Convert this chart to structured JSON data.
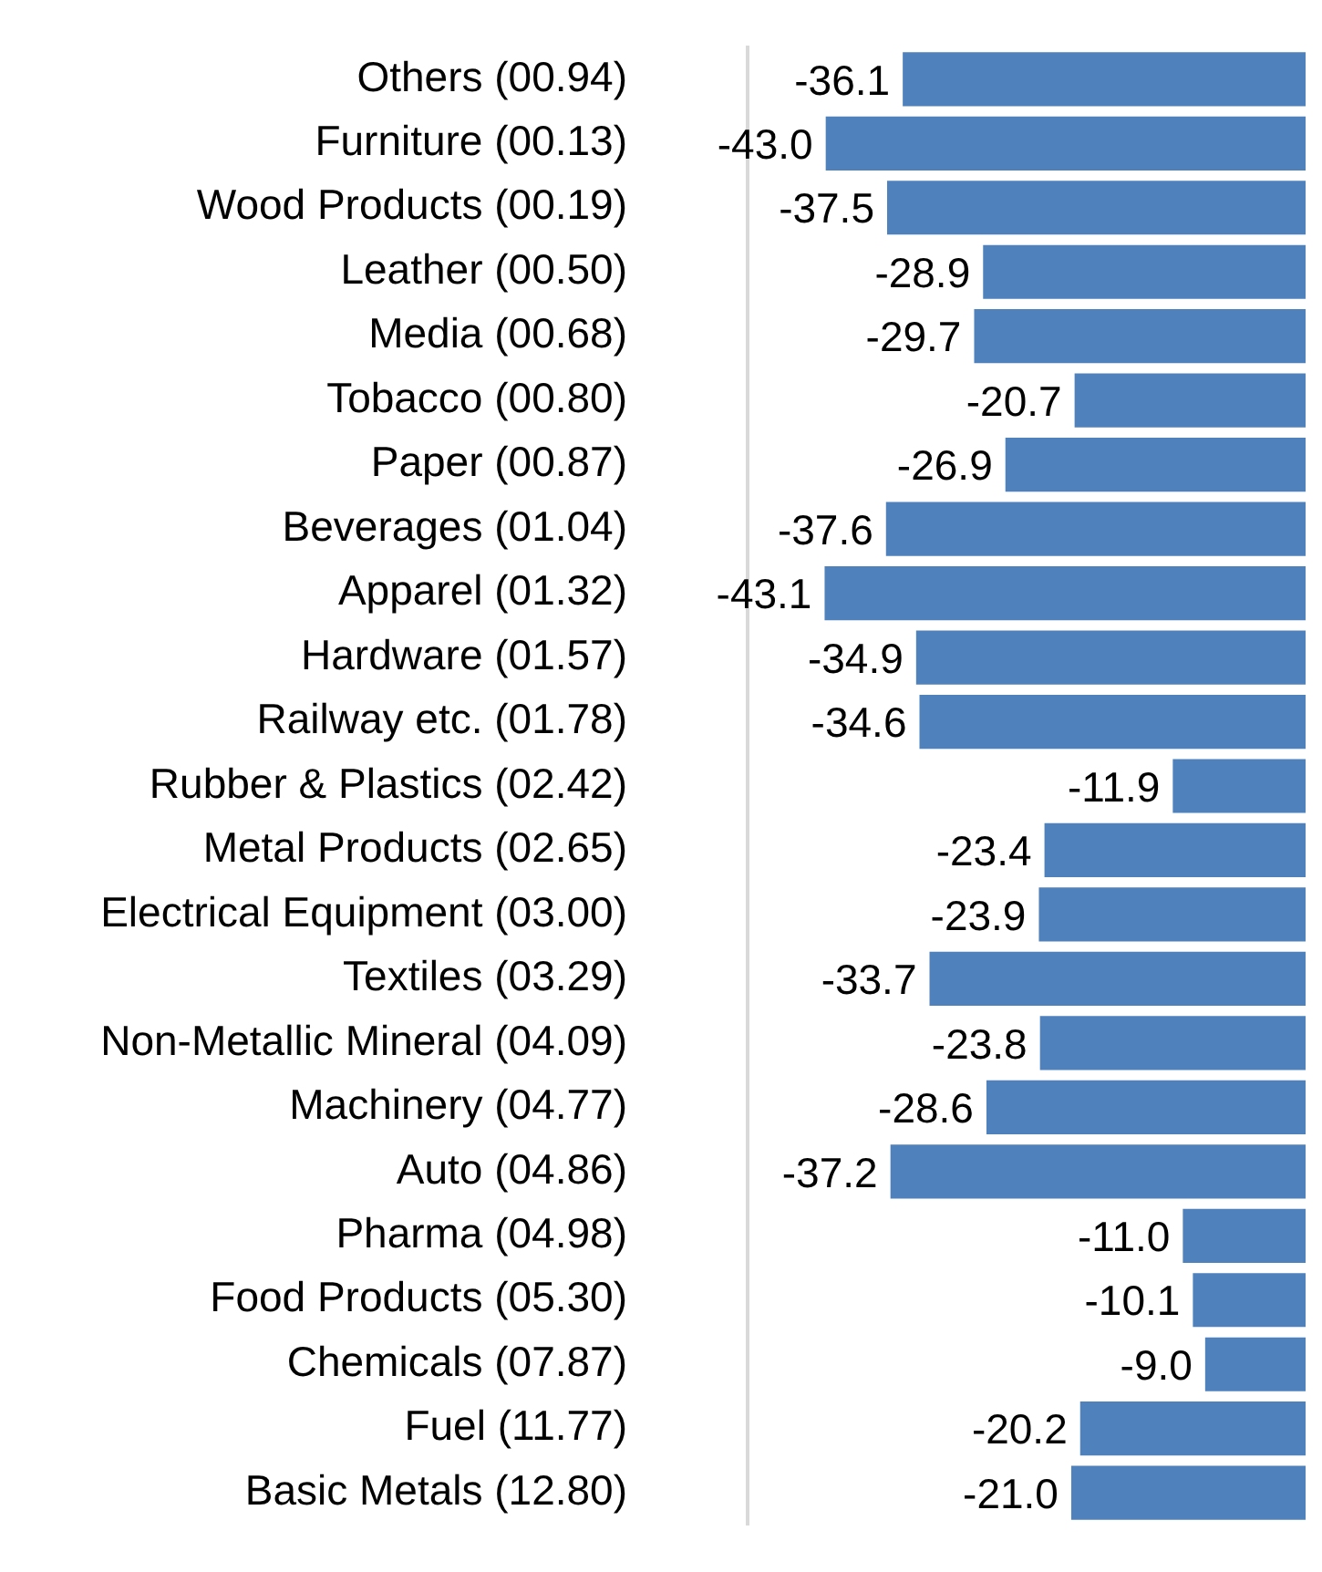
{
  "chart_data": {
    "type": "bar",
    "orientation": "horizontal",
    "categories": [
      "Others (00.94)",
      "Furniture (00.13)",
      "Wood Products (00.19)",
      "Leather (00.50)",
      "Media (00.68)",
      "Tobacco (00.80)",
      "Paper (00.87)",
      "Beverages (01.04)",
      "Apparel (01.32)",
      "Hardware (01.57)",
      "Railway etc. (01.78)",
      "Rubber & Plastics (02.42)",
      "Metal Products (02.65)",
      "Electrical Equipment (03.00)",
      "Textiles (03.29)",
      "Non-Metallic Mineral (04.09)",
      "Machinery (04.77)",
      "Auto (04.86)",
      "Pharma (04.98)",
      "Food Products (05.30)",
      "Chemicals (07.87)",
      "Fuel (11.77)",
      "Basic Metals (12.80)"
    ],
    "values": [
      -36.1,
      -43.0,
      -37.5,
      -28.9,
      -29.7,
      -20.7,
      -26.9,
      -37.6,
      -43.1,
      -34.9,
      -34.6,
      -11.9,
      -23.4,
      -23.9,
      -33.7,
      -23.8,
      -28.6,
      -37.2,
      -11.0,
      -10.1,
      -9.0,
      -20.2,
      -21.0
    ],
    "value_labels": [
      "-36.1",
      "-43.0",
      "-37.5",
      "-28.9",
      "-29.7",
      "-20.7",
      "-26.9",
      "-37.6",
      "-43.1",
      "-34.9",
      "-34.6",
      "-11.9",
      "-23.4",
      "-23.9",
      "-33.7",
      "-23.8",
      "-28.6",
      "-37.2",
      "-11.0",
      "-10.1",
      "-9.0",
      "-20.2",
      "-21.0"
    ],
    "color": "#4f81bd",
    "xlim": [
      -50,
      0
    ],
    "tick_labels": "y",
    "grid": false,
    "legend": false
  }
}
